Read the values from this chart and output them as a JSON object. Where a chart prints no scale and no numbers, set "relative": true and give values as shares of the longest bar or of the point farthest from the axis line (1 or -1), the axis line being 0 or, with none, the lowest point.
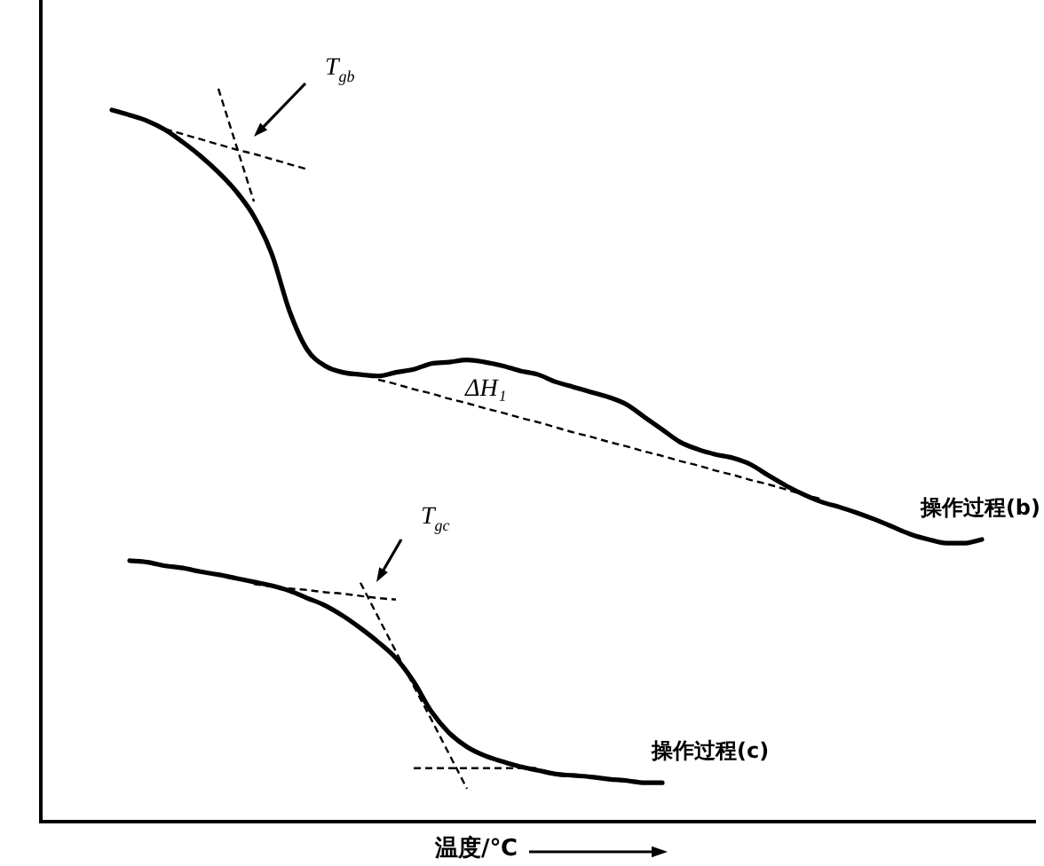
{
  "chart_data": {
    "type": "line",
    "relative": true,
    "marker": "none",
    "line_style": "solid",
    "tick_labels": false,
    "xlabel": "温度/℃",
    "annotations": [
      "T$_{gb}$",
      "ΔH₁",
      "T$_{gc}$"
    ],
    "categories": [
      null,
      null,
      null,
      null,
      null,
      null,
      null,
      null,
      null,
      null,
      null,
      null,
      null,
      null,
      null,
      null,
      null,
      null,
      null,
      null,
      null,
      null,
      null,
      null,
      null,
      null,
      null,
      null,
      null,
      null,
      null,
      null,
      null,
      null,
      null,
      null,
      null,
      null,
      null,
      null,
      null,
      null,
      null,
      null,
      null,
      null,
      null,
      null,
      null,
      null,
      null,
      null,
      null,
      null,
      null,
      null,
      null
    ],
    "series": [
      {
        "name": "操作过程(b)",
        "color": "#000000",
        "values": [
          null,
          null,
          null,
          null,
          0.971,
          0.964,
          0.956,
          0.944,
          0.927,
          0.908,
          0.886,
          0.86,
          0.826,
          0.775,
          0.697,
          0.644,
          0.622,
          0.613,
          0.61,
          0.608,
          0.613,
          0.617,
          0.625,
          0.627,
          0.63,
          0.627,
          0.622,
          0.615,
          0.61,
          0.6,
          0.593,
          0.586,
          0.579,
          0.569,
          0.552,
          0.535,
          0.518,
          0.508,
          0.501,
          0.496,
          0.487,
          0.472,
          0.458,
          0.446,
          0.436,
          0.429,
          0.421,
          0.412,
          0.402,
          0.392,
          0.385,
          0.38,
          0.38,
          0.385,
          null,
          null,
          null
        ]
      },
      {
        "name": "操作过程(c)",
        "color": "#000000",
        "values": [
          null,
          null,
          null,
          null,
          null,
          0.356,
          0.354,
          0.349,
          0.346,
          0.341,
          0.337,
          0.332,
          0.327,
          0.322,
          0.315,
          0.305,
          0.295,
          0.281,
          0.264,
          0.245,
          0.223,
          0.191,
          0.15,
          0.121,
          0.102,
          0.09,
          0.082,
          0.075,
          0.07,
          0.065,
          0.063,
          0.061,
          0.058,
          0.056,
          0.053,
          0.053,
          null,
          null,
          null,
          null,
          null,
          null,
          null,
          null,
          null,
          null,
          null,
          null,
          null,
          null,
          null,
          null,
          null,
          null,
          null,
          null,
          null
        ]
      },
      {
        "color": "#000000",
        "line_style": "dashed",
        "values": [
          null,
          null,
          null,
          null,
          null,
          null,
          null,
          0.945,
          0.938,
          0.931,
          0.924,
          0.917,
          0.911,
          0.904,
          0.897,
          0.89,
          null,
          null,
          null,
          null,
          null,
          null,
          null,
          null,
          null,
          null,
          null,
          null,
          null,
          null,
          null,
          null,
          null,
          null,
          null,
          null,
          null,
          null,
          null,
          null,
          null,
          null,
          null,
          null,
          null,
          null,
          null,
          null,
          null,
          null,
          null,
          null,
          null,
          null,
          null,
          null,
          null
        ]
      },
      {
        "color": "#000000",
        "line_style": "dashed",
        "values": [
          null,
          null,
          null,
          null,
          null,
          null,
          null,
          null,
          null,
          null,
          1,
          0.923,
          0.846,
          null,
          null,
          null,
          null,
          null,
          null,
          null,
          null,
          null,
          null,
          null,
          null,
          null,
          null,
          null,
          null,
          null,
          null,
          null,
          null,
          null,
          null,
          null,
          null,
          null,
          null,
          null,
          null,
          null,
          null,
          null,
          null,
          null,
          null,
          null,
          null,
          null,
          null,
          null,
          null,
          null,
          null,
          null,
          null
        ]
      },
      {
        "color": "#000000",
        "line_style": "dashed",
        "values": [
          null,
          null,
          null,
          null,
          null,
          null,
          null,
          null,
          null,
          null,
          null,
          null,
          null,
          null,
          null,
          null,
          null,
          null,
          null,
          0.603,
          0.597,
          0.59,
          0.584,
          0.577,
          0.571,
          0.564,
          0.558,
          0.551,
          0.545,
          0.538,
          0.531,
          0.525,
          0.518,
          0.512,
          0.505,
          0.499,
          0.492,
          0.486,
          0.479,
          0.473,
          0.466,
          0.46,
          0.453,
          0.446,
          0.44,
          null,
          null,
          null,
          null,
          null,
          null,
          null,
          null,
          null,
          null,
          null,
          null
        ]
      },
      {
        "color": "#000000",
        "line_style": "dashed",
        "values": [
          null,
          null,
          null,
          null,
          null,
          null,
          null,
          null,
          null,
          null,
          null,
          null,
          0.324,
          0.321,
          0.318,
          0.316,
          0.313,
          0.311,
          0.308,
          0.305,
          0.303,
          null,
          null,
          null,
          null,
          null,
          null,
          null,
          null,
          null,
          null,
          null,
          null,
          null,
          null,
          null,
          null,
          null,
          null,
          null,
          null,
          null,
          null,
          null,
          null,
          null,
          null,
          null,
          null,
          null,
          null,
          null,
          null,
          null,
          null,
          null,
          null
        ]
      },
      {
        "color": "#000000",
        "line_style": "dashed",
        "values": [
          null,
          null,
          null,
          null,
          null,
          null,
          null,
          null,
          null,
          null,
          null,
          null,
          null,
          null,
          null,
          null,
          null,
          null,
          0.326,
          0.279,
          0.232,
          0.185,
          0.139,
          0.092,
          0.045,
          null,
          null,
          null,
          null,
          null,
          null,
          null,
          null,
          null,
          null,
          null,
          null,
          null,
          null,
          null,
          null,
          null,
          null,
          null,
          null,
          null,
          null,
          null,
          null,
          null,
          null,
          null,
          null,
          null,
          null,
          null,
          null
        ]
      },
      {
        "color": "#000000",
        "line_style": "dashed",
        "values": [
          null,
          null,
          null,
          null,
          null,
          null,
          null,
          null,
          null,
          null,
          null,
          null,
          null,
          null,
          null,
          null,
          null,
          null,
          null,
          null,
          null,
          0.073,
          0.073,
          0.073,
          0.073,
          0.073,
          0.073,
          0.073,
          0.073,
          null,
          null,
          null,
          null,
          null,
          null,
          null,
          null,
          null,
          null,
          null,
          null,
          null,
          null,
          null,
          null,
          null,
          null,
          null,
          null,
          null,
          null,
          null,
          null,
          null,
          null,
          null,
          null
        ]
      }
    ]
  }
}
